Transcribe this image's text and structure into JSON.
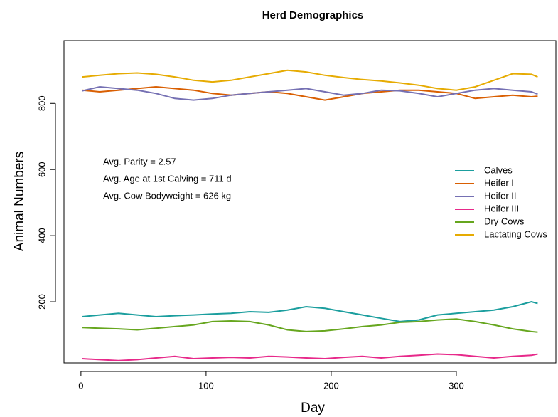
{
  "chart_data": {
    "type": "line",
    "title": "Herd Demographics",
    "x_label": "Day",
    "y_label": "Animal Numbers",
    "x": [
      1,
      15,
      30,
      45,
      60,
      75,
      90,
      105,
      120,
      135,
      150,
      165,
      180,
      195,
      210,
      225,
      240,
      255,
      270,
      285,
      300,
      315,
      330,
      345,
      360,
      365
    ],
    "series": [
      {
        "name": "Calves",
        "color": "#1b9e9e",
        "values": [
          155,
          160,
          165,
          160,
          155,
          158,
          160,
          163,
          165,
          170,
          168,
          175,
          185,
          180,
          170,
          160,
          150,
          140,
          145,
          160,
          165,
          170,
          175,
          185,
          200,
          195
        ]
      },
      {
        "name": "Heifer I",
        "color": "#d95f02",
        "values": [
          840,
          835,
          840,
          845,
          850,
          845,
          840,
          830,
          825,
          830,
          835,
          830,
          820,
          810,
          820,
          830,
          835,
          840,
          840,
          835,
          830,
          815,
          820,
          825,
          820,
          822
        ]
      },
      {
        "name": "Heifer II",
        "color": "#7570b3",
        "values": [
          838,
          850,
          845,
          840,
          830,
          815,
          810,
          815,
          825,
          830,
          835,
          840,
          845,
          835,
          825,
          830,
          840,
          838,
          830,
          820,
          830,
          840,
          845,
          840,
          835,
          828
        ]
      },
      {
        "name": "Heifer III",
        "color": "#e7298a",
        "values": [
          28,
          25,
          22,
          25,
          30,
          35,
          28,
          30,
          32,
          30,
          35,
          33,
          30,
          28,
          32,
          35,
          30,
          35,
          38,
          42,
          40,
          35,
          30,
          35,
          38,
          42
        ]
      },
      {
        "name": "Dry Cows",
        "color": "#66a61e",
        "values": [
          122,
          120,
          118,
          115,
          120,
          125,
          130,
          140,
          142,
          140,
          130,
          115,
          110,
          112,
          118,
          125,
          130,
          138,
          140,
          145,
          148,
          140,
          130,
          118,
          110,
          108
        ]
      },
      {
        "name": "Lactating Cows",
        "color": "#e6ab02",
        "values": [
          880,
          885,
          890,
          892,
          888,
          880,
          870,
          865,
          870,
          880,
          890,
          900,
          895,
          885,
          878,
          872,
          868,
          862,
          855,
          845,
          840,
          850,
          870,
          890,
          888,
          880
        ]
      }
    ],
    "annotations": [
      "Avg. Parity = 2.57",
      "Avg. Age at 1st Calving = 711 d",
      "Avg. Cow Bodyweight = 626 kg"
    ],
    "xlim": [
      -13.56,
      379.56
    ],
    "ylim": [
      15,
      990
    ],
    "xticks": [
      0,
      100,
      200,
      300
    ],
    "yticks": [
      200,
      400,
      600,
      800
    ],
    "legend": "right"
  }
}
